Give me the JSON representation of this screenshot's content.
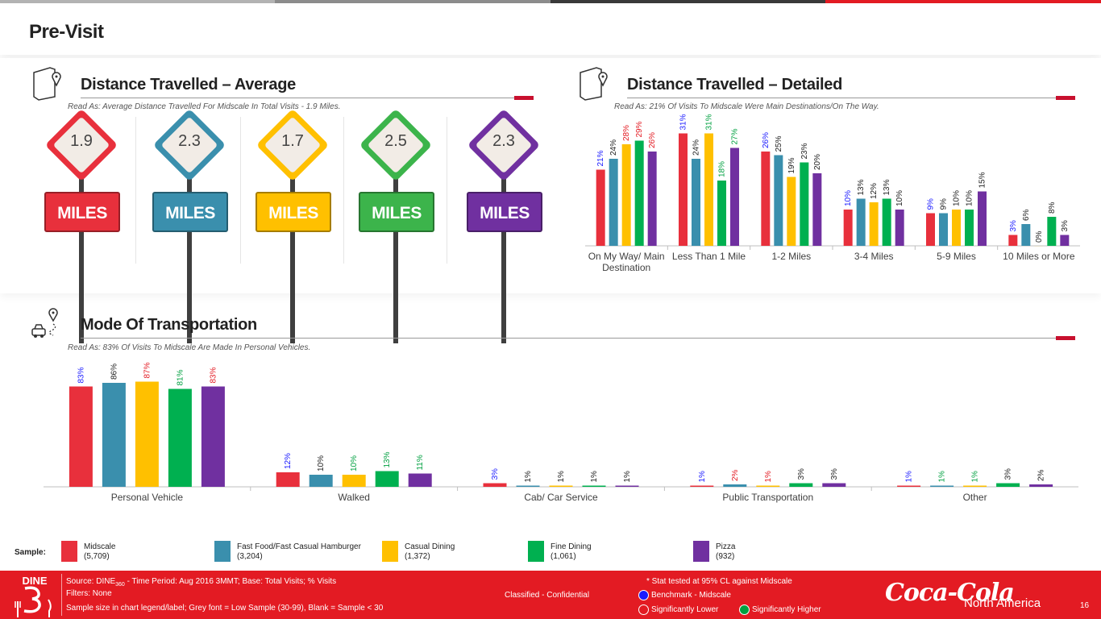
{
  "page": {
    "title": "Pre-Visit",
    "topbar_colors": [
      "#b3b3b3",
      "#8c8c8c",
      "#3a3a3a",
      "#e31b23"
    ]
  },
  "segments": [
    {
      "name": "Midscale",
      "sample": "(5,709)",
      "color": "#e8303c"
    },
    {
      "name": "Fast Food/Fast Casual Hamburger",
      "sample": "(3,204)",
      "color": "#3a8fad"
    },
    {
      "name": "Casual Dining",
      "sample": "(1,372)",
      "color": "#ffc000"
    },
    {
      "name": "Fine Dining",
      "sample": "(1,061)",
      "color": "#00b050"
    },
    {
      "name": "Pizza",
      "sample": "(932)",
      "color": "#7030a0"
    }
  ],
  "label_colors": {
    "benchmark": "#1a1aff",
    "higher": "#00a040",
    "lower": "#e31b23",
    "neutral": "#222222"
  },
  "avg_section": {
    "title": "Distance Travelled – Average",
    "read_as": "Read As: Average Distance Travelled For Midscale In Total Visits - 1.9 Miles.",
    "icon": "map-pin-icon",
    "unit_label": "MILES",
    "signs": [
      {
        "value": "1.9",
        "color": "#e8303c"
      },
      {
        "value": "2.3",
        "color": "#3a8fad"
      },
      {
        "value": "1.7",
        "color": "#ffc000"
      },
      {
        "value": "2.5",
        "color": "#3cb44b"
      },
      {
        "value": "2.3",
        "color": "#7030a0"
      }
    ]
  },
  "detail_section": {
    "title": "Distance Travelled – Detailed",
    "read_as": "Read As: 21% Of Visits To Midscale Were Main Destinations/On The Way.",
    "icon": "map-pin-icon"
  },
  "mode_section": {
    "title": "Mode Of Transportation",
    "read_as": "Read As: 83% Of Visits To Midscale Are Made In Personal Vehicles.",
    "icon": "car-route-icon"
  },
  "chart_data": [
    {
      "type": "bar",
      "id": "distance-detailed",
      "categories": [
        "On My Way/ Main Destination",
        "Less Than 1 Mile",
        "1-2 Miles",
        "3-4 Miles",
        "5-9 Miles",
        "10 Miles or More"
      ],
      "series": [
        {
          "name": "Midscale",
          "values": [
            21,
            31,
            26,
            10,
            9,
            3
          ],
          "labels": [
            "21%",
            "31%",
            "26%",
            "10%",
            "9%",
            "3%"
          ],
          "sig": [
            "benchmark",
            "benchmark",
            "benchmark",
            "benchmark",
            "benchmark",
            "benchmark"
          ]
        },
        {
          "name": "Fast Food/Fast Casual Hamburger",
          "values": [
            24,
            24,
            25,
            13,
            9,
            6
          ],
          "labels": [
            "24%",
            "24%",
            "25%",
            "13%",
            "9%",
            "6%"
          ],
          "sig": [
            "neutral",
            "neutral",
            "neutral",
            "neutral",
            "neutral",
            "neutral"
          ]
        },
        {
          "name": "Casual Dining",
          "values": [
            28,
            31,
            19,
            12,
            10,
            0
          ],
          "labels": [
            "28%",
            "31%",
            "19%",
            "12%",
            "10%",
            "0%"
          ],
          "sig": [
            "lower",
            "higher",
            "neutral",
            "neutral",
            "neutral",
            "neutral"
          ]
        },
        {
          "name": "Fine Dining",
          "values": [
            29,
            18,
            23,
            13,
            10,
            8
          ],
          "labels": [
            "29%",
            "18%",
            "23%",
            "13%",
            "10%",
            "8%"
          ],
          "sig": [
            "lower",
            "higher",
            "neutral",
            "neutral",
            "neutral",
            "neutral"
          ]
        },
        {
          "name": "Pizza",
          "values": [
            26,
            27,
            20,
            10,
            15,
            3
          ],
          "labels": [
            "26%",
            "27%",
            "20%",
            "10%",
            "15%",
            "3%"
          ],
          "sig": [
            "lower",
            "higher",
            "neutral",
            "neutral",
            "neutral",
            "neutral"
          ]
        }
      ],
      "ylim": [
        0,
        40
      ],
      "grid": false
    },
    {
      "type": "bar",
      "id": "mode-of-transportation",
      "categories": [
        "Personal Vehicle",
        "Walked",
        "Cab/ Car Service",
        "Public Transportation",
        "Other"
      ],
      "series": [
        {
          "name": "Midscale",
          "values": [
            83,
            12,
            3,
            1,
            1
          ],
          "labels": [
            "83%",
            "12%",
            "3%",
            "1%",
            "1%"
          ],
          "sig": [
            "benchmark",
            "benchmark",
            "benchmark",
            "benchmark",
            "benchmark"
          ]
        },
        {
          "name": "Fast Food/Fast Casual Hamburger",
          "values": [
            86,
            10,
            1,
            2,
            1
          ],
          "labels": [
            "86%",
            "10%",
            "1%",
            "2%",
            "1%"
          ],
          "sig": [
            "neutral",
            "neutral",
            "neutral",
            "lower",
            "higher"
          ]
        },
        {
          "name": "Casual Dining",
          "values": [
            87,
            10,
            1,
            1,
            1
          ],
          "labels": [
            "87%",
            "10%",
            "1%",
            "1%",
            "1%"
          ],
          "sig": [
            "lower",
            "higher",
            "neutral",
            "lower",
            "higher"
          ]
        },
        {
          "name": "Fine Dining",
          "values": [
            81,
            13,
            1,
            3,
            3
          ],
          "labels": [
            "81%",
            "13%",
            "1%",
            "3%",
            "3%"
          ],
          "sig": [
            "higher",
            "higher",
            "neutral",
            "neutral",
            "neutral"
          ]
        },
        {
          "name": "Pizza",
          "values": [
            83,
            11,
            1,
            3,
            2
          ],
          "labels": [
            "83%",
            "11%",
            "1%",
            "3%",
            "2%"
          ],
          "sig": [
            "lower",
            "higher",
            "neutral",
            "neutral",
            "neutral"
          ]
        }
      ],
      "ylim": [
        0,
        100
      ],
      "grid": false
    }
  ],
  "legend": {
    "label": "Sample:"
  },
  "footer": {
    "logo_text": "DINE",
    "source_prefix": "Source: DINE",
    "source_sub": "360",
    "source_suffix": " - Time Period: Aug 2016 3MMT; Base: Total Visits; % Visits",
    "filters": "Filters: None",
    "sample_note": "Sample size in chart legend/label;  Grey font = Low Sample (30-99), Blank = Sample < 30",
    "classification": "Classified - Confidential",
    "stat_note": "* Stat tested at 95% CL against Midscale",
    "benchmark": "Benchmark - Midscale",
    "lower": "Significantly Lower",
    "higher": "Significantly Higher",
    "brand": "Coca-Cola",
    "region": "North America",
    "page_number": "16"
  }
}
